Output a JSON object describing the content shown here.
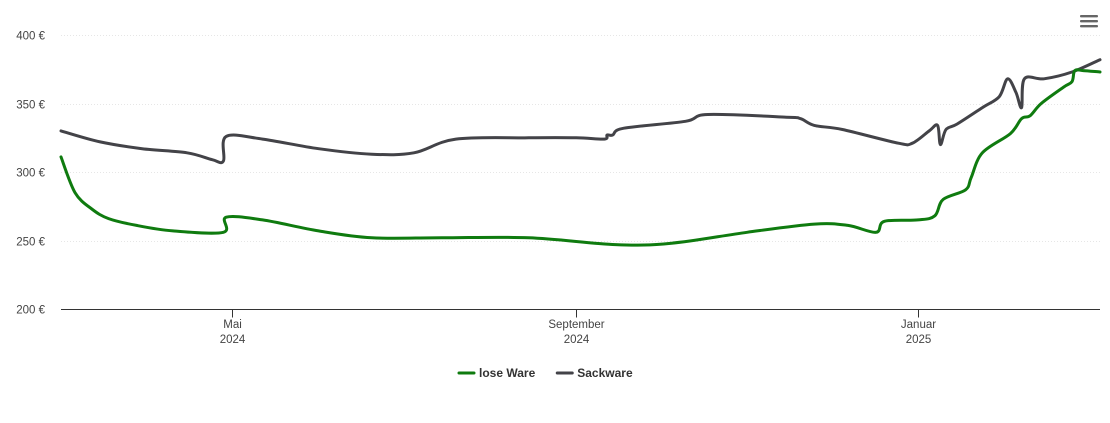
{
  "chart_data": {
    "type": "line",
    "title": "",
    "xlabel": "",
    "ylabel": "",
    "ylim": [
      200,
      400
    ],
    "y_ticks": [
      {
        "value": 200,
        "label": "200 €"
      },
      {
        "value": 250,
        "label": "250 €"
      },
      {
        "value": 300,
        "label": "300 €"
      },
      {
        "value": 350,
        "label": "350 €"
      },
      {
        "value": 400,
        "label": "400 €"
      }
    ],
    "xlim": [
      "2024-03-01",
      "2025-03-07"
    ],
    "x_ticks": [
      {
        "date": "2024-05-01",
        "month": "Mai",
        "year": "2024"
      },
      {
        "date": "2024-09-01",
        "month": "September",
        "year": "2024"
      },
      {
        "date": "2025-01-01",
        "month": "Januar",
        "year": "2025"
      }
    ],
    "grid": "horizontal",
    "legend_position": "bottom-center",
    "series": [
      {
        "name": "lose Ware",
        "color": "#0f7b0f",
        "points": [
          [
            "2024-03-01",
            311
          ],
          [
            "2024-03-06",
            285
          ],
          [
            "2024-03-12",
            273
          ],
          [
            "2024-03-18",
            266
          ],
          [
            "2024-03-28",
            261
          ],
          [
            "2024-04-10",
            257
          ],
          [
            "2024-04-28",
            256
          ],
          [
            "2024-04-29",
            267
          ],
          [
            "2024-05-12",
            265
          ],
          [
            "2024-06-01",
            257
          ],
          [
            "2024-06-20",
            252
          ],
          [
            "2024-07-15",
            252
          ],
          [
            "2024-08-15",
            252
          ],
          [
            "2024-09-15",
            247
          ],
          [
            "2024-10-05",
            248
          ],
          [
            "2024-11-01",
            256
          ],
          [
            "2024-11-25",
            262
          ],
          [
            "2024-12-07",
            261
          ],
          [
            "2024-12-17",
            256
          ],
          [
            "2024-12-20",
            264
          ],
          [
            "2025-01-01",
            265
          ],
          [
            "2025-01-07",
            268
          ],
          [
            "2025-01-10",
            280
          ],
          [
            "2025-01-18",
            287
          ],
          [
            "2025-01-20",
            296
          ],
          [
            "2025-01-24",
            314
          ],
          [
            "2025-02-03",
            328
          ],
          [
            "2025-02-07",
            339
          ],
          [
            "2025-02-10",
            341
          ],
          [
            "2025-02-14",
            350
          ],
          [
            "2025-02-22",
            362
          ],
          [
            "2025-02-25",
            366
          ],
          [
            "2025-02-26",
            374
          ],
          [
            "2025-03-01",
            374
          ],
          [
            "2025-03-07",
            373
          ]
        ]
      },
      {
        "name": "Sackware",
        "color": "#434348",
        "points": [
          [
            "2024-03-01",
            330
          ],
          [
            "2024-03-15",
            322
          ],
          [
            "2024-03-30",
            317
          ],
          [
            "2024-04-15",
            314
          ],
          [
            "2024-04-24",
            309
          ],
          [
            "2024-04-28",
            308
          ],
          [
            "2024-04-29",
            326
          ],
          [
            "2024-05-12",
            324
          ],
          [
            "2024-06-01",
            317
          ],
          [
            "2024-06-20",
            313
          ],
          [
            "2024-07-05",
            314
          ],
          [
            "2024-07-20",
            324
          ],
          [
            "2024-08-15",
            325
          ],
          [
            "2024-09-01",
            325
          ],
          [
            "2024-09-11",
            324
          ],
          [
            "2024-09-12",
            327
          ],
          [
            "2024-09-14",
            327
          ],
          [
            "2024-09-18",
            332
          ],
          [
            "2024-10-10",
            337
          ],
          [
            "2024-10-18",
            342
          ],
          [
            "2024-11-15",
            340
          ],
          [
            "2024-11-20",
            339
          ],
          [
            "2024-11-25",
            334
          ],
          [
            "2024-12-05",
            331
          ],
          [
            "2024-12-25",
            321
          ],
          [
            "2024-12-30",
            321
          ],
          [
            "2025-01-05",
            330
          ],
          [
            "2025-01-08",
            334
          ],
          [
            "2025-01-09",
            320
          ],
          [
            "2025-01-11",
            331
          ],
          [
            "2025-01-15",
            335
          ],
          [
            "2025-01-24",
            347
          ],
          [
            "2025-01-30",
            355
          ],
          [
            "2025-02-02",
            368
          ],
          [
            "2025-02-05",
            358
          ],
          [
            "2025-02-07",
            347
          ],
          [
            "2025-02-08",
            368
          ],
          [
            "2025-02-15",
            368
          ],
          [
            "2025-02-25",
            373
          ],
          [
            "2025-03-07",
            382
          ]
        ]
      }
    ]
  },
  "toolbar": {
    "menu_icon": "hamburger-menu-icon"
  }
}
